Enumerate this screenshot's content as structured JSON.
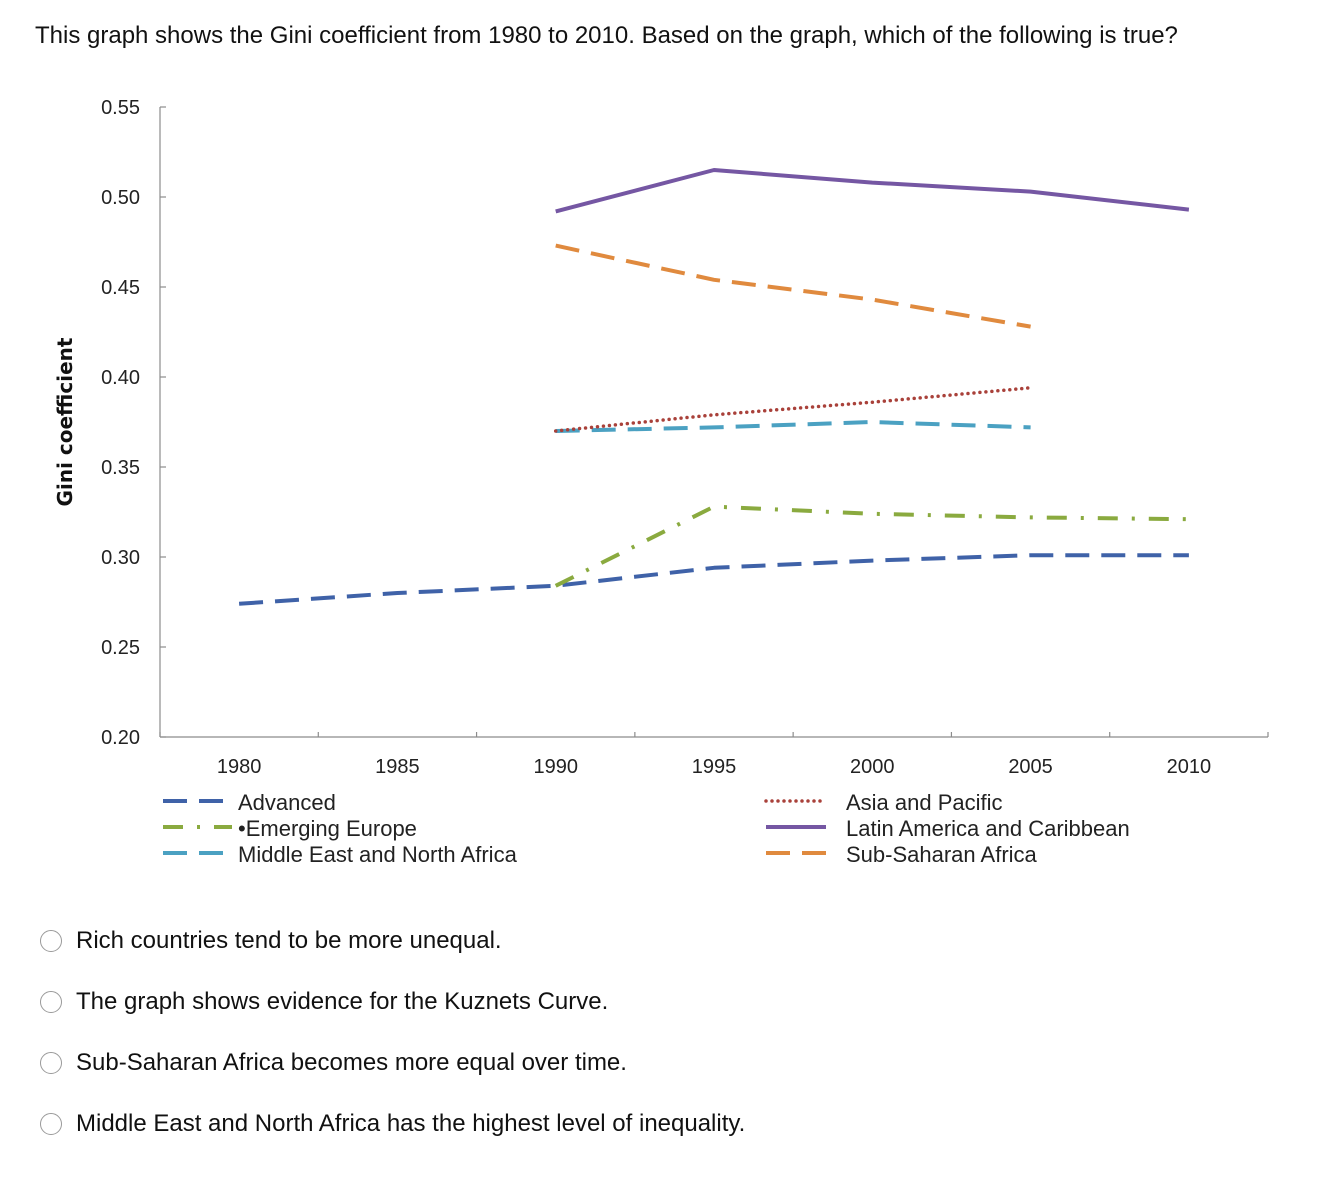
{
  "question": "This graph shows the Gini coefficient from 1980 to 2010. Based on the graph, which of the following is true?",
  "chart_data": {
    "type": "line",
    "title": "",
    "xlabel": "",
    "ylabel": "Gini coefficient",
    "xlim": [
      1977.5,
      2012.5
    ],
    "ylim": [
      0.2,
      0.55
    ],
    "x_ticks": [
      "1980",
      "1985",
      "1990",
      "1995",
      "2000",
      "2005",
      "2010"
    ],
    "y_ticks": [
      "0.55",
      "0.50",
      "0.45",
      "0.40",
      "0.35",
      "0.30",
      "0.25",
      "0.20"
    ],
    "grid": false,
    "legend_position": "bottom",
    "series": [
      {
        "name": "Advanced",
        "color": "#3f62a8",
        "style": "dashed",
        "x": [
          1980,
          1985,
          1990,
          1995,
          2000,
          2005,
          2010
        ],
        "y": [
          0.274,
          0.28,
          0.284,
          0.294,
          0.298,
          0.301,
          0.301
        ]
      },
      {
        "name": "Emerging Europe",
        "color": "#8aaa3f",
        "style": "dash-dot",
        "x": [
          1990,
          1995,
          2000,
          2005,
          2010
        ],
        "y": [
          0.284,
          0.328,
          0.324,
          0.322,
          0.321
        ]
      },
      {
        "name": "Middle East and North Africa",
        "color": "#4ba1c2",
        "style": "dashed",
        "x": [
          1990,
          1995,
          2000,
          2005
        ],
        "y": [
          0.37,
          0.372,
          0.375,
          0.372
        ]
      },
      {
        "name": "Asia and Pacific",
        "color": "#a9413a",
        "style": "dotted",
        "x": [
          1990,
          1995,
          2000,
          2005
        ],
        "y": [
          0.37,
          0.379,
          0.386,
          0.394
        ]
      },
      {
        "name": "Latin America and Caribbean",
        "color": "#7557a3",
        "style": "solid",
        "x": [
          1990,
          1995,
          2000,
          2005,
          2010
        ],
        "y": [
          0.492,
          0.515,
          0.508,
          0.503,
          0.493
        ]
      },
      {
        "name": "Sub-Saharan Africa",
        "color": "#e08a3e",
        "style": "dashed",
        "x": [
          1990,
          1995,
          2000,
          2005
        ],
        "y": [
          0.473,
          0.454,
          0.443,
          0.428
        ]
      }
    ]
  },
  "legend": {
    "left": [
      "Advanced",
      "Emerging Europe",
      "Middle East and North Africa"
    ],
    "right": [
      "Asia and Pacific",
      "Latin America and Caribbean",
      "Sub-Saharan Africa"
    ]
  },
  "options": [
    "Rich countries tend to be more unequal.",
    "The graph shows evidence for the Kuznets Curve.",
    "Sub-Saharan Africa becomes more equal over time.",
    "Middle East and North Africa has the highest level of inequality."
  ]
}
